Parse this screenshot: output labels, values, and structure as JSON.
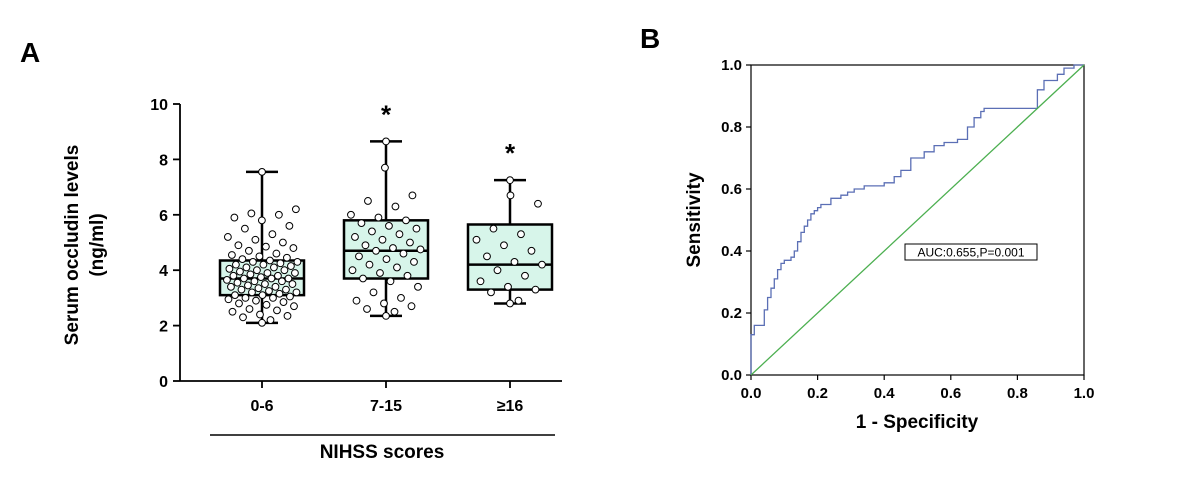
{
  "panels": {
    "a_label": "A",
    "b_label": "B"
  },
  "chart_data": [
    {
      "type": "box",
      "panel": "A",
      "ylabel_line1": "Serum occludin levels",
      "ylabel_line2": "(ng/ml)",
      "xlabel": "NIHSS scores",
      "ylim": [
        0,
        10
      ],
      "yticks": [
        0,
        2,
        4,
        6,
        8,
        10
      ],
      "colors": {
        "box_fill": "#d7f5ea",
        "stroke": "#000000"
      },
      "categories": [
        "0-6",
        "7-15",
        "≥16"
      ],
      "groups": [
        {
          "category": "0-6",
          "min": 2.1,
          "q1": 3.1,
          "median": 3.7,
          "q3": 4.35,
          "max": 7.55,
          "significance": "",
          "points": [
            2.1,
            2.2,
            2.3,
            2.35,
            2.4,
            2.5,
            2.55,
            2.6,
            2.7,
            2.75,
            2.8,
            2.85,
            2.9,
            2.95,
            3.0,
            3.0,
            3.05,
            3.1,
            3.1,
            3.15,
            3.2,
            3.2,
            3.25,
            3.3,
            3.3,
            3.35,
            3.4,
            3.4,
            3.45,
            3.5,
            3.5,
            3.55,
            3.6,
            3.6,
            3.65,
            3.7,
            3.7,
            3.7,
            3.75,
            3.8,
            3.8,
            3.85,
            3.9,
            3.9,
            3.95,
            4.0,
            4.0,
            4.05,
            4.1,
            4.1,
            4.15,
            4.2,
            4.2,
            4.25,
            4.3,
            4.3,
            4.35,
            4.4,
            4.45,
            4.5,
            4.55,
            4.6,
            4.7,
            4.8,
            4.85,
            4.9,
            5.0,
            5.1,
            5.2,
            5.3,
            5.5,
            5.6,
            5.8,
            5.9,
            6.0,
            6.05,
            6.2,
            7.55
          ]
        },
        {
          "category": "7-15",
          "min": 2.35,
          "q1": 3.7,
          "median": 4.7,
          "q3": 5.8,
          "max": 8.65,
          "significance": "*",
          "points": [
            2.35,
            2.5,
            2.6,
            2.7,
            2.8,
            2.9,
            3.0,
            3.2,
            3.4,
            3.6,
            3.7,
            3.8,
            3.9,
            4.0,
            4.1,
            4.2,
            4.3,
            4.4,
            4.5,
            4.6,
            4.7,
            4.75,
            4.8,
            4.9,
            5.0,
            5.1,
            5.2,
            5.3,
            5.4,
            5.5,
            5.6,
            5.7,
            5.8,
            5.9,
            6.0,
            6.3,
            6.5,
            6.7,
            7.7,
            8.65
          ]
        },
        {
          "category": "≥16",
          "min": 2.8,
          "q1": 3.3,
          "median": 4.2,
          "q3": 5.65,
          "max": 7.25,
          "significance": "*",
          "points": [
            2.8,
            2.9,
            3.2,
            3.3,
            3.4,
            3.6,
            3.8,
            4.0,
            4.2,
            4.3,
            4.5,
            4.7,
            4.9,
            5.1,
            5.3,
            5.5,
            6.4,
            6.7,
            7.25
          ]
        }
      ]
    },
    {
      "type": "line",
      "panel": "B",
      "xlabel": "1 - Specificity",
      "ylabel": "Sensitivity",
      "xlim": [
        0,
        1
      ],
      "ylim": [
        0,
        1
      ],
      "xticks": [
        "0.0",
        "0.2",
        "0.4",
        "0.6",
        "0.8",
        "1.0"
      ],
      "yticks": [
        "0.0",
        "0.2",
        "0.4",
        "0.6",
        "0.8",
        "1.0"
      ],
      "annotation": "AUC:0.655,P=0.001",
      "colors": {
        "roc": "#5b6fb5",
        "reference": "#4caf50"
      },
      "series": [
        {
          "role": "roc",
          "x": [
            0,
            0,
            0.01,
            0.01,
            0.02,
            0.02,
            0.04,
            0.04,
            0.05,
            0.05,
            0.06,
            0.06,
            0.07,
            0.07,
            0.08,
            0.08,
            0.09,
            0.09,
            0.1,
            0.1,
            0.12,
            0.12,
            0.13,
            0.13,
            0.14,
            0.14,
            0.15,
            0.15,
            0.16,
            0.16,
            0.17,
            0.17,
            0.18,
            0.18,
            0.19,
            0.19,
            0.2,
            0.2,
            0.21,
            0.21,
            0.22,
            0.22,
            0.24,
            0.24,
            0.27,
            0.27,
            0.29,
            0.29,
            0.31,
            0.31,
            0.34,
            0.34,
            0.37,
            0.37,
            0.4,
            0.4,
            0.43,
            0.43,
            0.45,
            0.45,
            0.48,
            0.48,
            0.52,
            0.52,
            0.55,
            0.55,
            0.58,
            0.58,
            0.62,
            0.62,
            0.65,
            0.65,
            0.67,
            0.67,
            0.69,
            0.69,
            0.7,
            0.7,
            0.72,
            0.72,
            0.86,
            0.86,
            0.88,
            0.88,
            0.92,
            0.92,
            0.94,
            0.94,
            0.97,
            0.97,
            1.0
          ],
          "y": [
            0,
            0.13,
            0.13,
            0.16,
            0.16,
            0.16,
            0.16,
            0.21,
            0.21,
            0.25,
            0.25,
            0.28,
            0.28,
            0.31,
            0.31,
            0.34,
            0.34,
            0.36,
            0.36,
            0.37,
            0.37,
            0.38,
            0.38,
            0.4,
            0.4,
            0.43,
            0.43,
            0.46,
            0.46,
            0.48,
            0.48,
            0.5,
            0.5,
            0.52,
            0.52,
            0.53,
            0.53,
            0.54,
            0.54,
            0.55,
            0.55,
            0.55,
            0.55,
            0.57,
            0.57,
            0.58,
            0.58,
            0.59,
            0.59,
            0.6,
            0.6,
            0.61,
            0.61,
            0.61,
            0.61,
            0.62,
            0.62,
            0.64,
            0.64,
            0.66,
            0.66,
            0.7,
            0.7,
            0.72,
            0.72,
            0.74,
            0.74,
            0.75,
            0.75,
            0.76,
            0.76,
            0.8,
            0.8,
            0.83,
            0.83,
            0.85,
            0.85,
            0.86,
            0.86,
            0.86,
            0.86,
            0.92,
            0.92,
            0.95,
            0.95,
            0.97,
            0.97,
            0.99,
            0.99,
            1.0,
            1.0
          ]
        },
        {
          "role": "reference",
          "x": [
            0,
            1
          ],
          "y": [
            0,
            1
          ]
        }
      ]
    }
  ]
}
